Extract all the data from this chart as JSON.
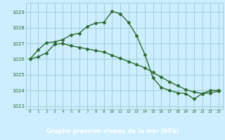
{
  "line1_x": [
    0,
    1,
    2,
    3,
    4,
    5,
    6,
    7,
    8,
    9,
    10,
    11,
    12,
    13,
    14,
    15,
    16,
    17,
    18,
    19,
    20,
    21,
    22,
    23
  ],
  "line1_y": [
    1026.0,
    1026.6,
    1027.05,
    1027.1,
    1027.25,
    1027.55,
    1027.65,
    1028.1,
    1028.3,
    1028.35,
    1029.05,
    1028.9,
    1028.35,
    1027.5,
    1026.3,
    1024.8,
    1024.2,
    1024.0,
    1023.85,
    1023.8,
    1023.45,
    1023.8,
    1024.0,
    1024.0
  ],
  "line2_x": [
    0,
    1,
    2,
    3,
    4,
    5,
    6,
    7,
    8,
    9,
    10,
    11,
    12,
    13,
    14,
    15,
    16,
    17,
    18,
    19,
    20,
    21,
    22,
    23
  ],
  "line2_y": [
    1026.0,
    1026.15,
    1026.4,
    1026.95,
    1027.0,
    1026.85,
    1026.75,
    1026.65,
    1026.55,
    1026.45,
    1026.25,
    1026.05,
    1025.85,
    1025.65,
    1025.45,
    1025.15,
    1024.85,
    1024.55,
    1024.3,
    1024.05,
    1023.9,
    1023.8,
    1023.85,
    1023.95
  ],
  "line_color": "#2d6b2d",
  "bg_color": "#cceeff",
  "plot_bg_color": "#cceeff",
  "grid_color": "#99cccc",
  "bottom_bar_color": "#336633",
  "bottom_bar_text": "Graphe pression niveau de la mer (hPa)",
  "xlim": [
    -0.5,
    23.5
  ],
  "ylim": [
    1022.8,
    1029.6
  ],
  "yticks": [
    1023,
    1024,
    1025,
    1026,
    1027,
    1028,
    1029
  ],
  "xticks": [
    0,
    1,
    2,
    3,
    4,
    5,
    6,
    7,
    8,
    9,
    10,
    11,
    12,
    13,
    14,
    15,
    16,
    17,
    18,
    19,
    20,
    21,
    22,
    23
  ],
  "marker": "D",
  "marker_size": 2.0,
  "line_width": 1.0
}
